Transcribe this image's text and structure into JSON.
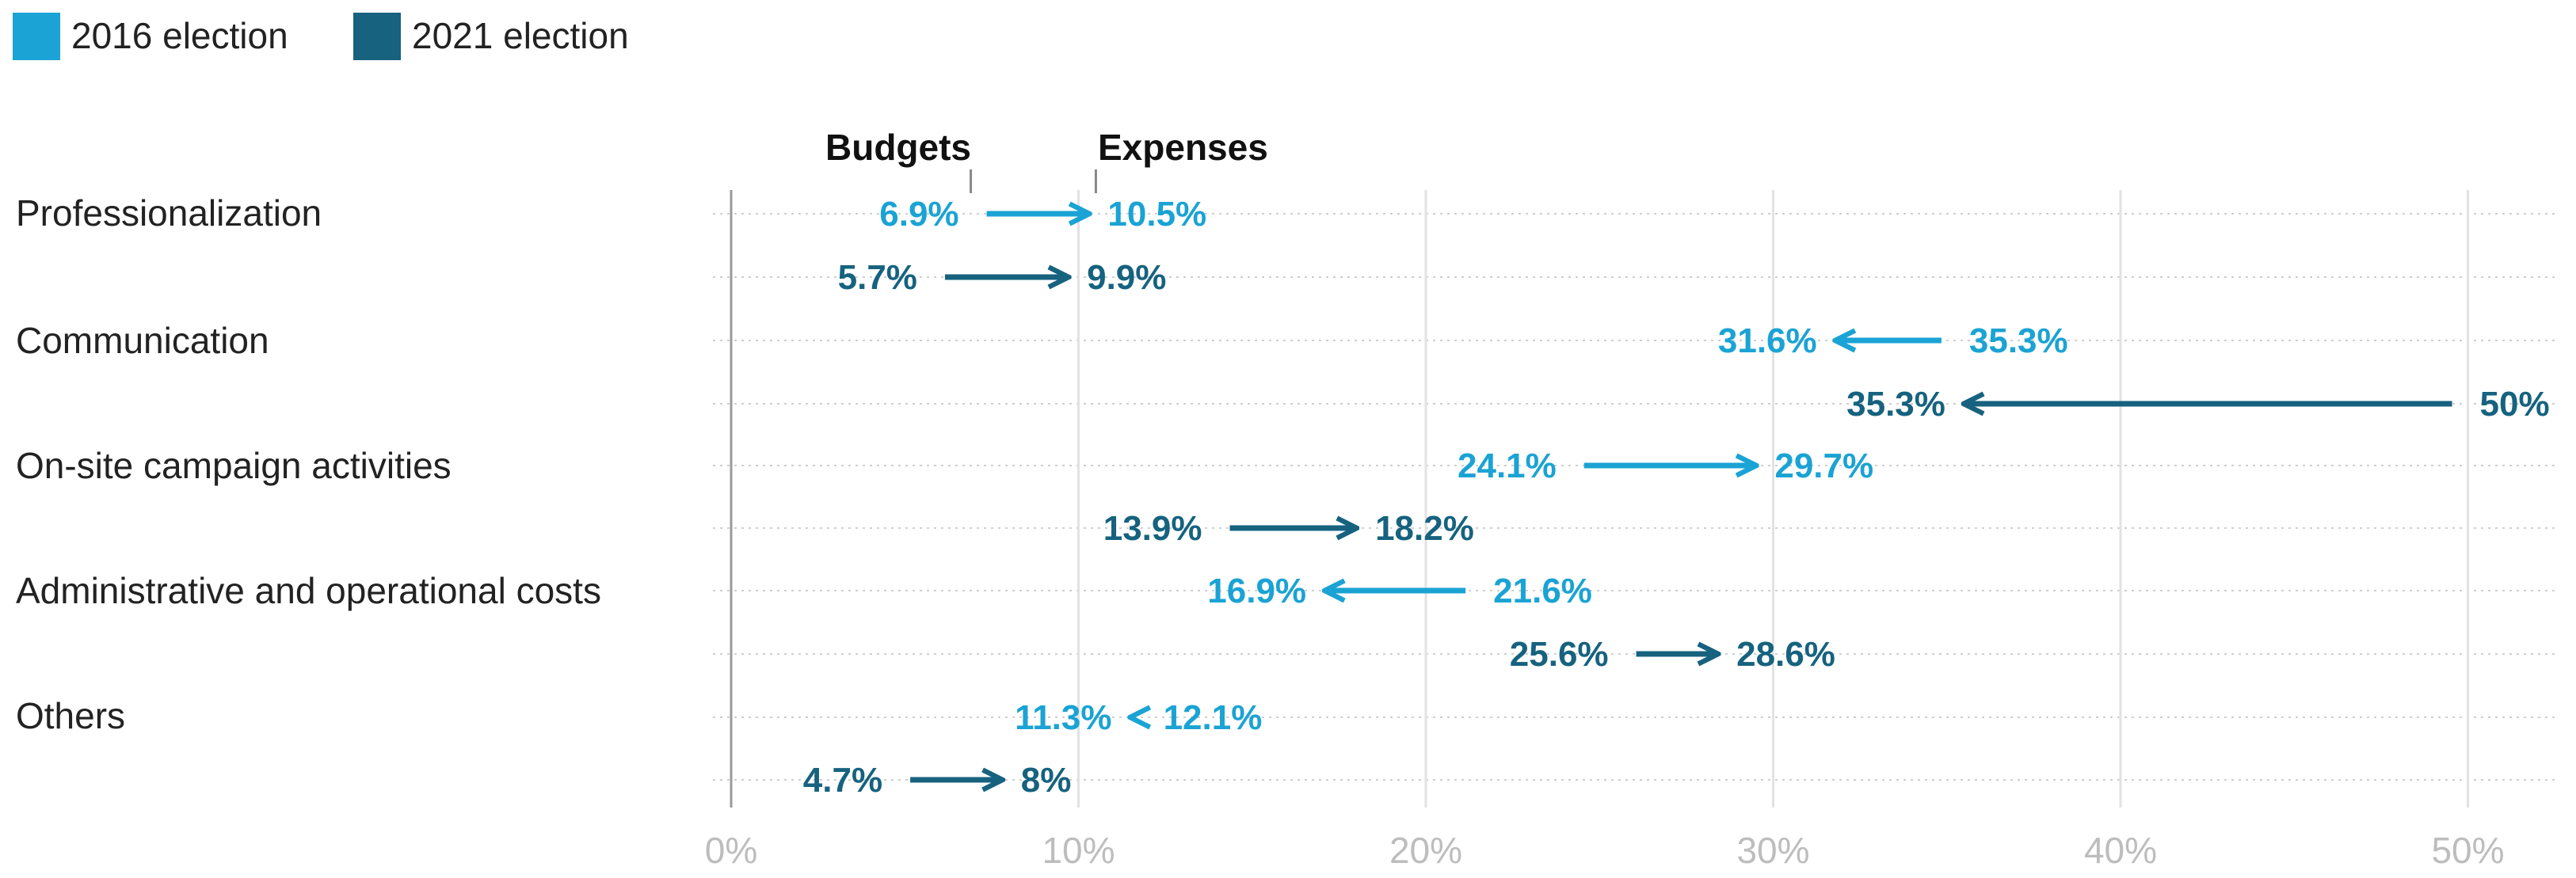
{
  "chart_data": {
    "type": "dumbbell-arrow",
    "title": "",
    "xlabel": "",
    "ylabel": "",
    "xlim": [
      0,
      52
    ],
    "x_ticks": [
      0,
      10,
      20,
      30,
      40,
      50
    ],
    "x_tick_labels": [
      "0%",
      "10%",
      "20%",
      "30%",
      "40%",
      "50%"
    ],
    "annotations": {
      "start": "Budgets",
      "end": "Expenses"
    },
    "legend": [
      {
        "name": "2016 election",
        "color": "#1aa3d4"
      },
      {
        "name": "2021 election",
        "color": "#16627f"
      }
    ],
    "categories": [
      "Professionalization",
      "Communication",
      "On-site campaign activities",
      "Administrative and operational costs",
      "Others"
    ],
    "series": [
      {
        "name": "2016 election",
        "color": "#1aa3d4",
        "budgets": [
          6.9,
          35.3,
          24.1,
          21.6,
          12.1
        ],
        "expenses": [
          10.5,
          31.6,
          29.7,
          16.9,
          11.3
        ],
        "budget_labels": [
          "6.9%",
          "35.3%",
          "24.1%",
          "21.6%",
          "12.1%"
        ],
        "expense_labels": [
          "10.5%",
          "31.6%",
          "29.7%",
          "16.9%",
          "11.3%"
        ]
      },
      {
        "name": "2021 election",
        "color": "#16627f",
        "budgets": [
          5.7,
          50,
          13.9,
          25.6,
          4.7
        ],
        "expenses": [
          9.9,
          35.3,
          18.2,
          28.6,
          8
        ],
        "budget_labels": [
          "5.7%",
          "50%",
          "13.9%",
          "25.6%",
          "4.7%"
        ],
        "expense_labels": [
          "9.9%",
          "35.3%",
          "18.2%",
          "28.6%",
          "8%"
        ]
      }
    ]
  }
}
